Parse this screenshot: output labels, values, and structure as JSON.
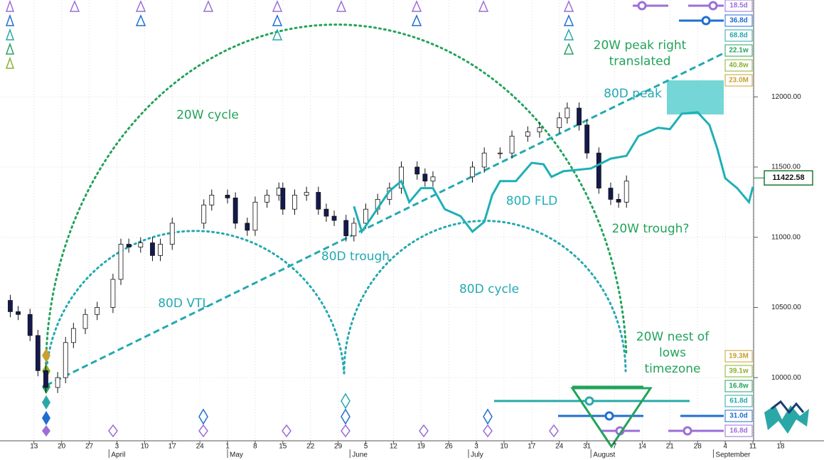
{
  "chart_data": {
    "type": "candlestick",
    "x": [
      -6,
      -4,
      -1,
      1,
      3,
      6,
      8,
      10,
      13,
      16,
      20,
      22,
      24,
      27,
      30,
      32,
      35,
      43,
      45,
      49,
      51,
      54,
      56,
      59,
      62,
      63,
      66,
      69,
      72,
      74,
      76,
      79,
      81,
      84,
      87,
      90,
      93,
      97,
      99,
      101,
      111,
      114,
      118,
      121,
      125,
      128,
      133,
      135,
      138,
      140,
      143,
      146,
      148,
      150
    ],
    "open": [
      10550,
      10470,
      10450,
      10300,
      10050,
      9930,
      10000,
      10250,
      10350,
      10450,
      10500,
      10700,
      10950,
      10930,
      10960,
      10870,
      10950,
      11100,
      11230,
      11300,
      11280,
      11100,
      11050,
      11250,
      11300,
      11350,
      11200,
      11300,
      11320,
      11200,
      11150,
      11120,
      11010,
      11100,
      11200,
      11270,
      11350,
      11500,
      11450,
      11400,
      11430,
      11500,
      11600,
      11600,
      11720,
      11750,
      11780,
      11850,
      11920,
      11800,
      11600,
      11350,
      11270,
      11250
    ],
    "high": [
      10590,
      10510,
      10490,
      10340,
      10090,
      10040,
      10290,
      10390,
      10490,
      10540,
      10740,
      10990,
      10990,
      11000,
      11000,
      10990,
      11140,
      11270,
      11340,
      11340,
      11320,
      11140,
      11290,
      11340,
      11390,
      11390,
      11340,
      11360,
      11360,
      11240,
      11190,
      11160,
      11140,
      11240,
      11310,
      11390,
      11540,
      11540,
      11490,
      11470,
      11540,
      11640,
      11640,
      11760,
      11790,
      11820,
      11890,
      11960,
      11960,
      11840,
      11640,
      11390,
      11310,
      11440
    ],
    "low": [
      10430,
      10410,
      10260,
      10010,
      9890,
      9890,
      9960,
      10210,
      10310,
      10410,
      10460,
      10660,
      10890,
      10890,
      10830,
      10830,
      10910,
      11060,
      11190,
      11240,
      11060,
      11010,
      11010,
      11210,
      11260,
      11160,
      11160,
      11260,
      11160,
      11110,
      11080,
      10970,
      10970,
      11060,
      11160,
      11230,
      11310,
      11410,
      11360,
      11360,
      11390,
      11460,
      11560,
      11560,
      11680,
      11710,
      11740,
      11810,
      11760,
      11560,
      11310,
      11230,
      11210,
      11210
    ],
    "close": [
      10470,
      10450,
      10300,
      10050,
      9930,
      10000,
      10250,
      10350,
      10450,
      10500,
      10700,
      10950,
      10930,
      10960,
      10870,
      10950,
      11100,
      11230,
      11300,
      11280,
      11100,
      11050,
      11250,
      11300,
      11350,
      11200,
      11300,
      11320,
      11200,
      11150,
      11120,
      11010,
      11100,
      11200,
      11270,
      11350,
      11500,
      11450,
      11400,
      11430,
      11500,
      11600,
      11600,
      11720,
      11750,
      11780,
      11850,
      11920,
      11800,
      11600,
      11350,
      11270,
      11250,
      11400
    ],
    "up_color": "#ffffff",
    "down_color": "#141a4f",
    "xlim": [
      -8.6,
      200
    ],
    "xticks": [
      {
        "value": 0,
        "label": "13"
      },
      {
        "value": 7,
        "label": "20"
      },
      {
        "value": 14,
        "label": "27"
      },
      {
        "value": 21,
        "label": "3"
      },
      {
        "value": 28,
        "label": "10"
      },
      {
        "value": 35,
        "label": "17"
      },
      {
        "value": 42,
        "label": "24"
      },
      {
        "value": 49,
        "label": "1"
      },
      {
        "value": 56,
        "label": "8"
      },
      {
        "value": 63,
        "label": "15"
      },
      {
        "value": 70,
        "label": "22"
      },
      {
        "value": 77,
        "label": "29"
      },
      {
        "value": 84,
        "label": "5"
      },
      {
        "value": 91,
        "label": "12"
      },
      {
        "value": 98,
        "label": "19"
      },
      {
        "value": 105,
        "label": "26"
      },
      {
        "value": 112,
        "label": "3"
      },
      {
        "value": 119,
        "label": "10"
      },
      {
        "value": 126,
        "label": "17"
      },
      {
        "value": 133,
        "label": "24"
      },
      {
        "value": 140,
        "label": "31"
      },
      {
        "value": 147,
        "label": "7"
      },
      {
        "value": 154,
        "label": "14"
      },
      {
        "value": 161,
        "label": "21"
      },
      {
        "value": 168,
        "label": "28"
      },
      {
        "value": 175,
        "label": "4"
      },
      {
        "value": 182,
        "label": "11"
      },
      {
        "value": 189,
        "label": "18"
      }
    ],
    "month_ticks": [
      {
        "value": 19,
        "label": "April"
      },
      {
        "value": 49,
        "label": "May"
      },
      {
        "value": 80,
        "label": "June"
      },
      {
        "value": 110,
        "label": "July"
      },
      {
        "value": 141,
        "label": "August"
      },
      {
        "value": 172,
        "label": "September"
      }
    ],
    "ylim": [
      9550,
      12690
    ],
    "yticks": [
      {
        "value": 12000,
        "label": "12000.00"
      },
      {
        "value": 11500,
        "label": "11500.00"
      },
      {
        "value": 11000,
        "label": "11000.00"
      },
      {
        "value": 10500,
        "label": "10500.00"
      },
      {
        "value": 10000,
        "label": "10000.00"
      }
    ],
    "grid": true,
    "last_price": {
      "value": 11422.58,
      "label": "11422.58"
    },
    "fld": {
      "name": "80D FLD",
      "color": "#1fb0b5",
      "x": [
        81,
        83,
        90,
        93,
        95,
        98,
        101,
        104,
        108,
        111,
        114,
        116,
        118,
        122,
        126,
        129,
        131,
        134,
        141,
        146,
        150,
        153,
        158,
        161,
        164,
        168,
        171,
        173,
        175,
        178,
        181,
        182
      ],
      "values": [
        11220,
        11040,
        11330,
        11400,
        11250,
        11350,
        11350,
        11200,
        11150,
        11040,
        11110,
        11300,
        11400,
        11400,
        11530,
        11520,
        11430,
        11470,
        11490,
        11560,
        11580,
        11720,
        11780,
        11770,
        11880,
        11890,
        11800,
        11630,
        11420,
        11350,
        11250,
        11360
      ]
    },
    "annotations": [
      {
        "lines": [
          "20W peak right",
          "translated"
        ],
        "color": "#22a35a"
      },
      {
        "lines": [
          "80D peak"
        ],
        "color": "#23a9b0"
      },
      {
        "lines": [
          "20W cycle"
        ],
        "color": "#22a35a"
      },
      {
        "lines": [
          "80D trough"
        ],
        "color": "#23a9b0"
      },
      {
        "lines": [
          "20W trough?"
        ],
        "color": "#22a35a"
      },
      {
        "lines": [
          "80D VTL"
        ],
        "color": "#23a9b0"
      },
      {
        "lines": [
          "80D cycle"
        ],
        "color": "#23a9b0"
      },
      {
        "lines": [
          "20W nest of",
          "lows",
          "timezone"
        ],
        "color": "#22a35a"
      }
    ],
    "cycle_boxes_top": [
      {
        "label": "18.5d",
        "color": "#9b6fd6"
      },
      {
        "label": "36.8d",
        "color": "#1f6fd0"
      },
      {
        "label": "68.8d",
        "color": "#2aa8a8"
      },
      {
        "label": "22.1w",
        "color": "#2aa060"
      },
      {
        "label": "40.8w",
        "color": "#8ab030"
      },
      {
        "label": "23.0M",
        "color": "#c8a030"
      }
    ],
    "cycle_boxes_bottom": [
      {
        "label": "19.3M",
        "color": "#c8a030"
      },
      {
        "label": "39.1w",
        "color": "#8ab030"
      },
      {
        "label": "16.8w",
        "color": "#2aa060"
      },
      {
        "label": "61.8d",
        "color": "#2aa8a8"
      },
      {
        "label": "31.0d",
        "color": "#1f6fd0"
      },
      {
        "label": "16.8d",
        "color": "#9b6fd6"
      }
    ]
  }
}
